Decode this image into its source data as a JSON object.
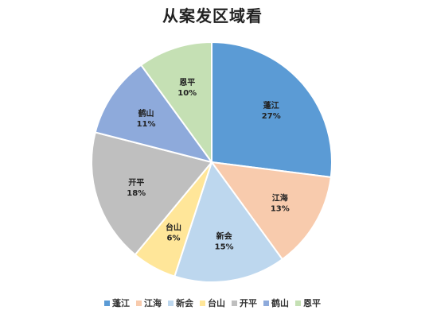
{
  "chart_data": {
    "type": "pie",
    "title": "从案发区域看",
    "legend_position": "bottom",
    "slices": [
      {
        "label": "蓬江",
        "percent_label": "27%",
        "value": 27,
        "color": "#5b9bd5"
      },
      {
        "label": "江海",
        "percent_label": "13%",
        "value": 13,
        "color": "#f8cbad"
      },
      {
        "label": "新会",
        "percent_label": "15%",
        "value": 15,
        "color": "#bdd7ee"
      },
      {
        "label": "台山",
        "percent_label": "6%",
        "value": 6,
        "color": "#ffe699"
      },
      {
        "label": "开平",
        "percent_label": "18%",
        "value": 18,
        "color": "#bfbfbf"
      },
      {
        "label": "鹤山",
        "percent_label": "11%",
        "value": 11,
        "color": "#8eaadb"
      },
      {
        "label": "恩平",
        "percent_label": "10%",
        "value": 10,
        "color": "#c5e0b4"
      }
    ]
  }
}
